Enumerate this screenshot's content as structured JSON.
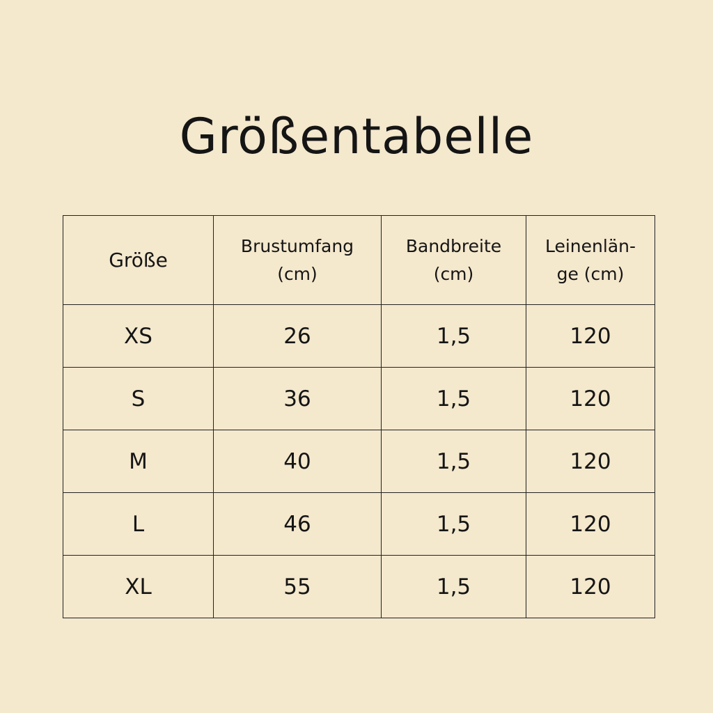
{
  "title": "Größentabelle",
  "table": {
    "headers": [
      "Größe",
      "Brustumfang\n(cm)",
      "Bandbreite\n(cm)",
      "Leinenlän-\nge (cm)"
    ],
    "rows": [
      [
        "XS",
        "26",
        "1,5",
        "120"
      ],
      [
        "S",
        "36",
        "1,5",
        "120"
      ],
      [
        "M",
        "40",
        "1,5",
        "120"
      ],
      [
        "L",
        "46",
        "1,5",
        "120"
      ],
      [
        "XL",
        "55",
        "1,5",
        "120"
      ]
    ]
  },
  "colors": {
    "background": "#f4e8cd",
    "text": "#151515",
    "border": "#222222"
  }
}
